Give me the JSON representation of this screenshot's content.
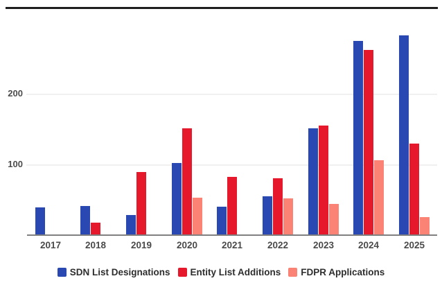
{
  "page": {
    "background": "#ffffff",
    "top_rule_color": "#1e1e1e"
  },
  "chart_data": {
    "type": "bar",
    "title": "",
    "xlabel": "",
    "ylabel": "",
    "categories": [
      "2017",
      "2018",
      "2019",
      "2020",
      "2021",
      "2022",
      "2023",
      "2024",
      "2025"
    ],
    "series": [
      {
        "name": "SDN List Designations",
        "color": "#2948b1",
        "values": [
          38,
          40,
          28,
          101,
          39,
          54,
          151,
          275,
          283
        ]
      },
      {
        "name": "Entity List Additions",
        "color": "#e6182b",
        "values": [
          0,
          17,
          89,
          151,
          82,
          80,
          155,
          262,
          129
        ]
      },
      {
        "name": "FDPR Applications",
        "color": "#fa8375",
        "values": [
          0,
          0,
          0,
          52,
          0,
          51,
          43,
          105,
          25
        ]
      }
    ],
    "ylim": [
      0,
      295
    ],
    "yticks": [
      100,
      200
    ],
    "grid": "horizontal-light",
    "legend_position": "bottom",
    "axis_line_color": "#808080",
    "tick_label_color": "#4a4a4a"
  }
}
